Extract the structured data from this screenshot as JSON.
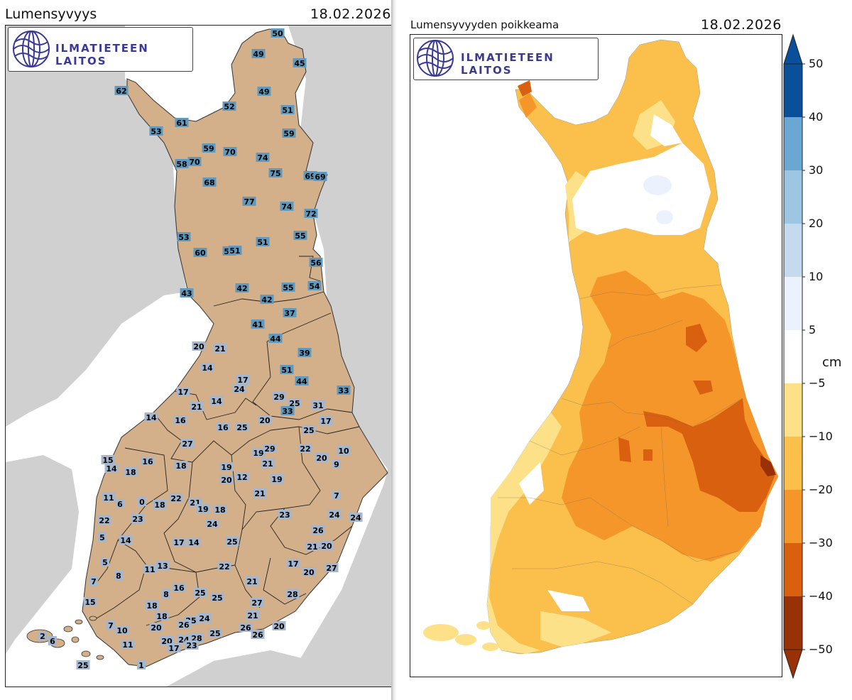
{
  "left_panel": {
    "title": "Lumensyvyys",
    "date": "18.02.2026",
    "logo_text": "ILMATIETEEN LAITOS"
  },
  "right_panel": {
    "title": "Lumensyvyyden poikkeama",
    "date": "18.02.2026",
    "logo_text": "ILMATIETEEN LAITOS"
  },
  "colorbar": {
    "unit": "cm",
    "ticks": [
      "50",
      "40",
      "30",
      "20",
      "10",
      "5",
      "−5",
      "−10",
      "−20",
      "−30",
      "−40",
      "−50"
    ],
    "colors": {
      "40_50": "#0a4f9a",
      "30_40": "#6aa7d3",
      "20_30": "#9cc6e2",
      "10_20": "#c5daef",
      "5_10": "#ecf2fd",
      "-5_5": "#ffffff",
      "-10_-5": "#fde189",
      "-20_-10": "#fbbf4c",
      "-30_-20": "#f5962a",
      "-40_-30": "#d9600f",
      "-50_-40": "#993107"
    }
  },
  "colors": {
    "land": "#d3b08a",
    "sea": "#ffffff",
    "neighbors": "#d0d0d0",
    "label_box": "#a4b7cf",
    "label_box_deep": "#5f9abe"
  },
  "stations": [
    "50",
    "49",
    "45",
    "62",
    "49",
    "61",
    "52",
    "51",
    "53",
    "59",
    "59",
    "70",
    "74",
    "58",
    "70",
    "75",
    "69",
    "69",
    "68",
    "77",
    "74",
    "72",
    "53",
    "55",
    "60",
    "51",
    "56",
    "51",
    "56",
    "43",
    "42",
    "55",
    "54",
    "42",
    "37",
    "41",
    "44",
    "20",
    "21",
    "39",
    "14",
    "51",
    "17",
    "44",
    "24",
    "33",
    "17",
    "29",
    "25",
    "21",
    "14",
    "31",
    "33",
    "14",
    "16",
    "16",
    "25",
    "20",
    "25",
    "17",
    "27",
    "19",
    "29",
    "22",
    "20",
    "10",
    "15",
    "16",
    "18",
    "19",
    "21",
    "9",
    "14",
    "18",
    "20",
    "12",
    "11",
    "6",
    "0",
    "18",
    "22",
    "21",
    "19",
    "18",
    "21",
    "19",
    "7",
    "22",
    "23",
    "24",
    "23",
    "24",
    "24",
    "26",
    "5",
    "14",
    "17",
    "14",
    "25",
    "21",
    "20",
    "5",
    "11",
    "13",
    "22",
    "17",
    "20",
    "27",
    "8",
    "8",
    "16",
    "25",
    "25",
    "21",
    "28",
    "7",
    "15",
    "18",
    "27",
    "18",
    "25",
    "24",
    "26",
    "21",
    "7",
    "10",
    "26",
    "26",
    "20",
    "2",
    "6",
    "11",
    "20",
    "20",
    "24",
    "28",
    "25",
    "17",
    "23",
    "25",
    "1",
    "19"
  ]
}
